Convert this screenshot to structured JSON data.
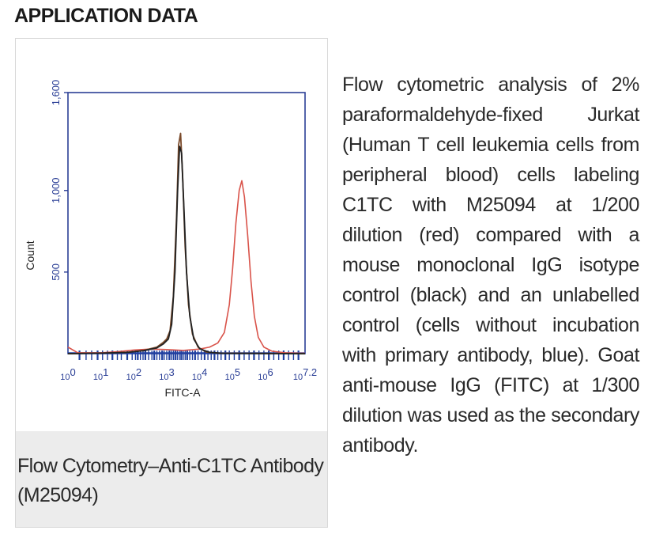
{
  "section_heading": "APPLICATION DATA",
  "caption": "Flow Cytometry–Anti-C1TC Antibody (M25094)",
  "description": "Flow cytometric analysis of 2% paraformaldehyde-fixed Jurkat (Human T cell leukemia cells from peripheral blood) cells labeling C1TC with M25094 at 1/200 dilution (red) compared with a mouse monoclonal IgG isotype control (black) and an unlabelled control (cells without incubation with primary antibody, blue). Goat anti-mouse IgG (FITC) at 1/300 dilution was used as the secondary antibody.",
  "colors": {
    "axis": "#2b3f96",
    "tick_label": "#2b3f96",
    "red": "#d9534a",
    "black": "#222222",
    "brown": "#7a4a2a",
    "blue": "#1f3fa0",
    "caption_bg": "#ececec"
  },
  "chart_data": {
    "type": "line",
    "xlabel": "FITC-A",
    "ylabel": "Count",
    "xscale": "log10",
    "xlim": [
      0,
      7.2
    ],
    "ylim": [
      0,
      1600
    ],
    "x_tick_labels": [
      {
        "base": "10",
        "exp": "0",
        "x": 0
      },
      {
        "base": "10",
        "exp": "1",
        "x": 1
      },
      {
        "base": "10",
        "exp": "2",
        "x": 2
      },
      {
        "base": "10",
        "exp": "3",
        "x": 3
      },
      {
        "base": "10",
        "exp": "4",
        "x": 4
      },
      {
        "base": "10",
        "exp": "5",
        "x": 5
      },
      {
        "base": "10",
        "exp": "6",
        "x": 6
      },
      {
        "base": "10",
        "exp": "7.2",
        "x": 7.2
      }
    ],
    "y_ticks": [
      {
        "label": "500",
        "value": 500
      },
      {
        "label": "1,000",
        "value": 1000
      },
      {
        "label": "1,600",
        "value": 1600
      }
    ],
    "series": [
      {
        "color": "red",
        "points": [
          [
            0,
            40
          ],
          [
            0.3,
            5
          ],
          [
            1.0,
            5
          ],
          [
            1.5,
            12
          ],
          [
            2.0,
            22
          ],
          [
            2.5,
            28
          ],
          [
            3.0,
            25
          ],
          [
            3.5,
            20
          ],
          [
            4.0,
            28
          ],
          [
            4.3,
            40
          ],
          [
            4.55,
            65
          ],
          [
            4.75,
            130
          ],
          [
            4.9,
            300
          ],
          [
            5.0,
            520
          ],
          [
            5.1,
            800
          ],
          [
            5.2,
            1000
          ],
          [
            5.28,
            1060
          ],
          [
            5.36,
            960
          ],
          [
            5.46,
            720
          ],
          [
            5.56,
            440
          ],
          [
            5.66,
            230
          ],
          [
            5.78,
            100
          ],
          [
            5.95,
            40
          ],
          [
            6.2,
            15
          ],
          [
            6.6,
            5
          ],
          [
            7.2,
            2
          ]
        ]
      },
      {
        "color": "brown",
        "points": [
          [
            0,
            0
          ],
          [
            1.0,
            3
          ],
          [
            1.8,
            8
          ],
          [
            2.3,
            20
          ],
          [
            2.7,
            40
          ],
          [
            2.9,
            70
          ],
          [
            3.0,
            90
          ],
          [
            3.1,
            140
          ],
          [
            3.2,
            350
          ],
          [
            3.3,
            850
          ],
          [
            3.36,
            1280
          ],
          [
            3.42,
            1350
          ],
          [
            3.48,
            1100
          ],
          [
            3.56,
            650
          ],
          [
            3.66,
            300
          ],
          [
            3.78,
            120
          ],
          [
            3.95,
            40
          ],
          [
            4.2,
            10
          ],
          [
            4.6,
            3
          ],
          [
            7.2,
            0
          ]
        ]
      },
      {
        "color": "black",
        "points": [
          [
            0,
            0
          ],
          [
            1.0,
            3
          ],
          [
            1.8,
            8
          ],
          [
            2.3,
            18
          ],
          [
            2.7,
            35
          ],
          [
            2.9,
            60
          ],
          [
            3.05,
            90
          ],
          [
            3.15,
            180
          ],
          [
            3.25,
            500
          ],
          [
            3.33,
            1000
          ],
          [
            3.39,
            1270
          ],
          [
            3.45,
            1230
          ],
          [
            3.52,
            900
          ],
          [
            3.6,
            500
          ],
          [
            3.7,
            230
          ],
          [
            3.82,
            90
          ],
          [
            4.0,
            30
          ],
          [
            4.3,
            8
          ],
          [
            4.7,
            2
          ],
          [
            7.2,
            0
          ]
        ]
      }
    ],
    "rug_series": {
      "color": "blue",
      "x_positions": [
        0.35,
        0.55,
        0.72,
        0.9,
        1.05,
        1.2,
        1.35,
        1.5,
        1.62,
        1.8,
        1.95,
        2.05,
        2.12,
        2.2,
        2.28,
        2.35,
        2.45,
        2.55,
        2.62,
        2.7,
        2.78,
        2.86,
        2.92,
        3.0,
        3.08,
        3.14,
        3.2,
        3.26,
        3.32,
        3.38,
        3.44,
        3.5,
        3.56,
        3.62,
        3.7,
        3.78,
        3.86,
        3.95,
        4.05,
        4.15,
        4.25,
        4.35,
        4.45,
        4.55,
        4.65,
        4.78,
        4.9,
        5.05,
        5.2,
        5.35,
        5.5,
        5.65,
        5.8,
        5.95,
        6.1,
        6.25,
        6.4,
        6.55,
        6.7,
        6.85,
        7.0
      ]
    }
  }
}
